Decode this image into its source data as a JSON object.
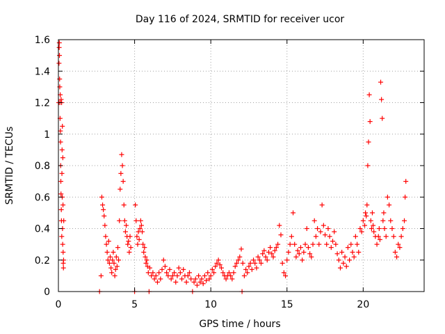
{
  "chart_data": {
    "type": "scatter",
    "title": "Day 116 of 2024, SRMTID for receiver ucor",
    "xlabel": "GPS time / hours",
    "ylabel": "SRMTID / TECUs",
    "xlim": [
      0,
      24
    ],
    "ylim": [
      0,
      1.6
    ],
    "xticks": [
      0,
      5,
      10,
      15,
      20
    ],
    "yticks": [
      0,
      0.2,
      0.4,
      0.6,
      0.8,
      1,
      1.2,
      1.4,
      1.6
    ],
    "xtick_labels": [
      "0",
      "5",
      "10",
      "15",
      "20"
    ],
    "ytick_labels": [
      "0",
      "0.2",
      "0.4",
      "0.6",
      "0.8",
      "1",
      "1.2",
      "1.4",
      "1.6"
    ],
    "grid": true,
    "marker": "+",
    "color": "#ff0000",
    "series": [
      {
        "name": "SRMTID",
        "points": [
          [
            0.02,
            1.2
          ],
          [
            0.04,
            1.45
          ],
          [
            0.05,
            1.55
          ],
          [
            0.06,
            1.58
          ],
          [
            0.07,
            1.5
          ],
          [
            0.08,
            1.35
          ],
          [
            0.09,
            1.3
          ],
          [
            0.1,
            1.2
          ],
          [
            0.11,
            1.1
          ],
          [
            0.12,
            1.25
          ],
          [
            0.13,
            1.02
          ],
          [
            0.14,
            0.95
          ],
          [
            0.15,
            0.8
          ],
          [
            0.16,
            0.7
          ],
          [
            0.17,
            0.62
          ],
          [
            0.18,
            1.22
          ],
          [
            0.19,
            0.52
          ],
          [
            0.2,
            0.45
          ],
          [
            0.21,
            1.2
          ],
          [
            0.22,
            0.35
          ],
          [
            0.23,
            0.75
          ],
          [
            0.24,
            0.9
          ],
          [
            0.25,
            0.6
          ],
          [
            0.26,
            1.05
          ],
          [
            0.27,
            0.4
          ],
          [
            0.28,
            0.3
          ],
          [
            0.29,
            0.85
          ],
          [
            0.3,
            0.55
          ],
          [
            0.31,
            0.25
          ],
          [
            0.32,
            0.18
          ],
          [
            0.33,
            0.15
          ],
          [
            0.34,
            0.2
          ],
          [
            0.35,
            0.45
          ],
          [
            2.7,
            0.0
          ],
          [
            2.8,
            0.1
          ],
          [
            2.85,
            0.6
          ],
          [
            2.9,
            0.55
          ],
          [
            2.95,
            0.52
          ],
          [
            3.0,
            0.48
          ],
          [
            3.05,
            0.42
          ],
          [
            3.1,
            0.35
          ],
          [
            3.15,
            0.3
          ],
          [
            3.2,
            0.25
          ],
          [
            3.25,
            0.2
          ],
          [
            3.3,
            0.32
          ],
          [
            3.35,
            0.18
          ],
          [
            3.4,
            0.22
          ],
          [
            3.45,
            0.15
          ],
          [
            3.5,
            0.12
          ],
          [
            3.55,
            0.2
          ],
          [
            3.6,
            0.25
          ],
          [
            3.65,
            0.18
          ],
          [
            3.7,
            0.1
          ],
          [
            3.75,
            0.14
          ],
          [
            3.8,
            0.22
          ],
          [
            3.85,
            0.16
          ],
          [
            3.9,
            0.28
          ],
          [
            3.95,
            0.2
          ],
          [
            4.0,
            0.45
          ],
          [
            4.05,
            0.65
          ],
          [
            4.1,
            0.75
          ],
          [
            4.15,
            0.87
          ],
          [
            4.2,
            0.8
          ],
          [
            4.25,
            0.7
          ],
          [
            4.3,
            0.55
          ],
          [
            4.35,
            0.45
          ],
          [
            4.4,
            0.38
          ],
          [
            4.45,
            0.42
          ],
          [
            4.5,
            0.35
          ],
          [
            4.55,
            0.3
          ],
          [
            4.6,
            0.32
          ],
          [
            4.65,
            0.25
          ],
          [
            4.7,
            0.35
          ],
          [
            4.75,
            0.28
          ],
          [
            5.0,
            0.0
          ],
          [
            5.05,
            0.55
          ],
          [
            5.1,
            0.45
          ],
          [
            5.15,
            0.35
          ],
          [
            5.2,
            0.3
          ],
          [
            5.25,
            0.38
          ],
          [
            5.3,
            0.33
          ],
          [
            5.35,
            0.4
          ],
          [
            5.4,
            0.45
          ],
          [
            5.45,
            0.42
          ],
          [
            5.5,
            0.38
          ],
          [
            5.55,
            0.3
          ],
          [
            5.6,
            0.25
          ],
          [
            5.65,
            0.28
          ],
          [
            5.7,
            0.22
          ],
          [
            5.75,
            0.18
          ],
          [
            5.8,
            0.2
          ],
          [
            5.85,
            0.16
          ],
          [
            5.9,
            0.12
          ],
          [
            5.95,
            0.0
          ],
          [
            6.0,
            0.15
          ],
          [
            6.1,
            0.1
          ],
          [
            6.2,
            0.12
          ],
          [
            6.3,
            0.08
          ],
          [
            6.4,
            0.1
          ],
          [
            6.5,
            0.06
          ],
          [
            6.6,
            0.12
          ],
          [
            6.7,
            0.08
          ],
          [
            6.8,
            0.14
          ],
          [
            6.9,
            0.2
          ],
          [
            7.0,
            0.16
          ],
          [
            7.1,
            0.12
          ],
          [
            7.2,
            0.1
          ],
          [
            7.3,
            0.14
          ],
          [
            7.4,
            0.08
          ],
          [
            7.5,
            0.1
          ],
          [
            7.6,
            0.12
          ],
          [
            7.7,
            0.06
          ],
          [
            7.8,
            0.1
          ],
          [
            7.9,
            0.15
          ],
          [
            8.0,
            0.12
          ],
          [
            8.1,
            0.08
          ],
          [
            8.2,
            0.14
          ],
          [
            8.3,
            0.1
          ],
          [
            8.4,
            0.06
          ],
          [
            8.5,
            0.1
          ],
          [
            8.6,
            0.12
          ],
          [
            8.7,
            0.08
          ],
          [
            8.8,
            0.0
          ],
          [
            8.9,
            0.06
          ],
          [
            9.0,
            0.08
          ],
          [
            9.1,
            0.04
          ],
          [
            9.2,
            0.1
          ],
          [
            9.3,
            0.06
          ],
          [
            9.4,
            0.08
          ],
          [
            9.5,
            0.05
          ],
          [
            9.6,
            0.1
          ],
          [
            9.7,
            0.07
          ],
          [
            9.8,
            0.12
          ],
          [
            9.9,
            0.08
          ],
          [
            10.0,
            0.1
          ],
          [
            10.1,
            0.14
          ],
          [
            10.2,
            0.12
          ],
          [
            10.3,
            0.16
          ],
          [
            10.4,
            0.18
          ],
          [
            10.5,
            0.2
          ],
          [
            10.6,
            0.17
          ],
          [
            10.7,
            0.15
          ],
          [
            10.8,
            0.12
          ],
          [
            10.9,
            0.1
          ],
          [
            11.0,
            0.08
          ],
          [
            11.1,
            0.1
          ],
          [
            11.2,
            0.12
          ],
          [
            11.3,
            0.1
          ],
          [
            11.4,
            0.08
          ],
          [
            11.5,
            0.12
          ],
          [
            11.6,
            0.16
          ],
          [
            11.7,
            0.18
          ],
          [
            11.8,
            0.2
          ],
          [
            11.9,
            0.22
          ],
          [
            12.0,
            0.27
          ],
          [
            12.05,
            0.0
          ],
          [
            12.1,
            0.18
          ],
          [
            12.2,
            0.1
          ],
          [
            12.3,
            0.14
          ],
          [
            12.4,
            0.12
          ],
          [
            12.5,
            0.16
          ],
          [
            12.6,
            0.18
          ],
          [
            12.7,
            0.14
          ],
          [
            12.8,
            0.2
          ],
          [
            12.9,
            0.18
          ],
          [
            13.0,
            0.15
          ],
          [
            13.1,
            0.22
          ],
          [
            13.2,
            0.2
          ],
          [
            13.3,
            0.18
          ],
          [
            13.4,
            0.24
          ],
          [
            13.5,
            0.26
          ],
          [
            13.6,
            0.22
          ],
          [
            13.7,
            0.2
          ],
          [
            13.8,
            0.25
          ],
          [
            13.9,
            0.28
          ],
          [
            14.0,
            0.24
          ],
          [
            14.1,
            0.22
          ],
          [
            14.2,
            0.26
          ],
          [
            14.3,
            0.28
          ],
          [
            14.4,
            0.3
          ],
          [
            14.5,
            0.42
          ],
          [
            14.6,
            0.36
          ],
          [
            14.7,
            0.18
          ],
          [
            14.8,
            0.12
          ],
          [
            14.9,
            0.1
          ],
          [
            15.0,
            0.2
          ],
          [
            15.1,
            0.25
          ],
          [
            15.2,
            0.3
          ],
          [
            15.3,
            0.35
          ],
          [
            15.4,
            0.5
          ],
          [
            15.5,
            0.3
          ],
          [
            15.6,
            0.22
          ],
          [
            15.7,
            0.26
          ],
          [
            15.8,
            0.24
          ],
          [
            15.9,
            0.28
          ],
          [
            16.0,
            0.2
          ],
          [
            16.1,
            0.25
          ],
          [
            16.2,
            0.3
          ],
          [
            16.3,
            0.4
          ],
          [
            16.4,
            0.28
          ],
          [
            16.5,
            0.24
          ],
          [
            16.6,
            0.22
          ],
          [
            16.7,
            0.3
          ],
          [
            16.8,
            0.45
          ],
          [
            16.9,
            0.35
          ],
          [
            17.0,
            0.4
          ],
          [
            17.1,
            0.3
          ],
          [
            17.2,
            0.38
          ],
          [
            17.3,
            0.55
          ],
          [
            17.4,
            0.42
          ],
          [
            17.5,
            0.36
          ],
          [
            17.6,
            0.3
          ],
          [
            17.7,
            0.4
          ],
          [
            17.8,
            0.35
          ],
          [
            17.9,
            0.28
          ],
          [
            18.0,
            0.32
          ],
          [
            18.1,
            0.38
          ],
          [
            18.2,
            0.3
          ],
          [
            18.3,
            0.24
          ],
          [
            18.4,
            0.2
          ],
          [
            18.5,
            0.15
          ],
          [
            18.6,
            0.25
          ],
          [
            18.7,
            0.18
          ],
          [
            18.8,
            0.22
          ],
          [
            18.9,
            0.16
          ],
          [
            19.0,
            0.28
          ],
          [
            19.1,
            0.2
          ],
          [
            19.2,
            0.3
          ],
          [
            19.3,
            0.25
          ],
          [
            19.4,
            0.22
          ],
          [
            19.5,
            0.35
          ],
          [
            19.6,
            0.3
          ],
          [
            19.7,
            0.25
          ],
          [
            19.8,
            0.4
          ],
          [
            19.9,
            0.38
          ],
          [
            20.0,
            0.45
          ],
          [
            20.1,
            0.42
          ],
          [
            20.15,
            0.5
          ],
          [
            20.2,
            0.48
          ],
          [
            20.25,
            0.55
          ],
          [
            20.3,
            0.8
          ],
          [
            20.35,
            0.95
          ],
          [
            20.4,
            1.25
          ],
          [
            20.45,
            1.08
          ],
          [
            20.5,
            0.45
          ],
          [
            20.55,
            0.4
          ],
          [
            20.6,
            0.5
          ],
          [
            20.65,
            0.42
          ],
          [
            20.7,
            0.38
          ],
          [
            20.8,
            0.35
          ],
          [
            20.9,
            0.3
          ],
          [
            21.0,
            0.35
          ],
          [
            21.05,
            0.4
          ],
          [
            21.1,
            0.33
          ],
          [
            21.15,
            1.33
          ],
          [
            21.2,
            1.22
          ],
          [
            21.25,
            1.1
          ],
          [
            21.3,
            0.45
          ],
          [
            21.35,
            0.5
          ],
          [
            21.4,
            0.4
          ],
          [
            21.5,
            0.35
          ],
          [
            21.6,
            0.6
          ],
          [
            21.7,
            0.55
          ],
          [
            21.8,
            0.45
          ],
          [
            21.9,
            0.4
          ],
          [
            22.0,
            0.35
          ],
          [
            22.1,
            0.25
          ],
          [
            22.2,
            0.22
          ],
          [
            22.3,
            0.3
          ],
          [
            22.4,
            0.28
          ],
          [
            22.5,
            0.35
          ],
          [
            22.6,
            0.4
          ],
          [
            22.7,
            0.45
          ],
          [
            22.75,
            0.6
          ],
          [
            22.8,
            0.7
          ]
        ]
      }
    ]
  }
}
